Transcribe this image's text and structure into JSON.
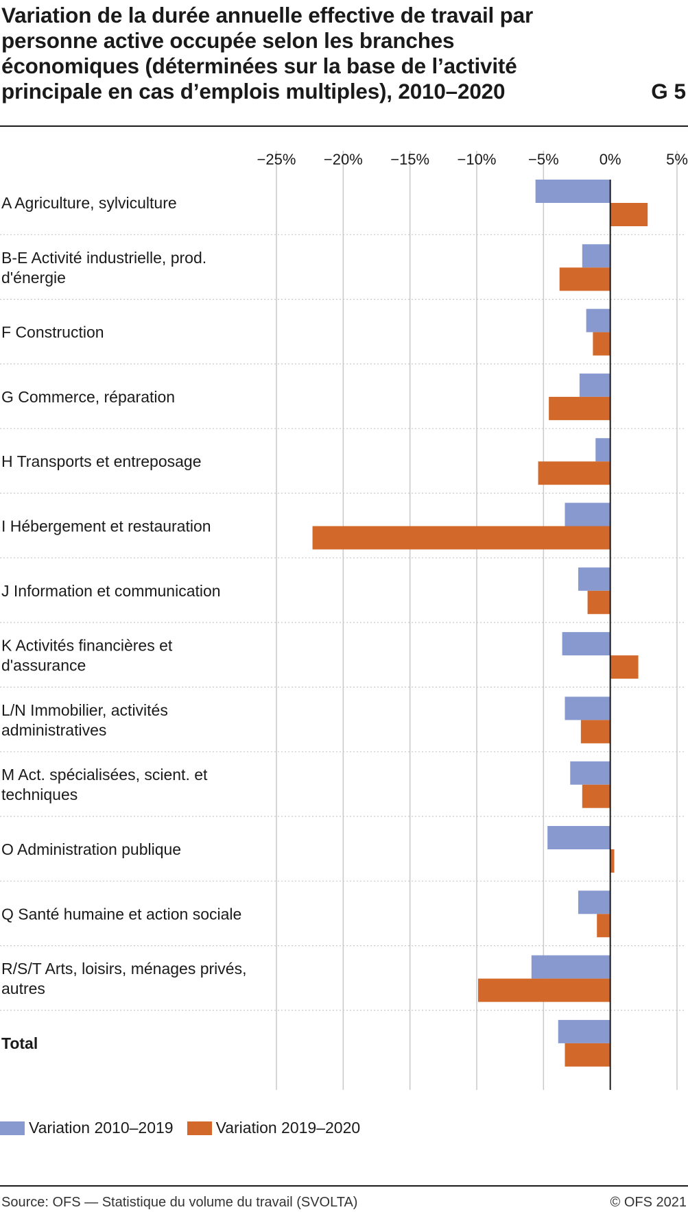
{
  "header": {
    "title": "Variation de la durée annuelle effective de travail par personne active occupée selon les branches économiques (déterminées sur la base de l’activité principale en cas d’emplois multiples), 2010–2020",
    "figure_id": "G 5"
  },
  "footer": {
    "source": "Source: OFS — Statistique du volume du travail (SVOLTA)",
    "copyright": "© OFS 2021"
  },
  "colors": {
    "series_1": "#8799cf",
    "series_2": "#d2692a",
    "grid": "#c9c9c9",
    "axis": "#1a1a1a"
  },
  "chart_data": {
    "type": "bar",
    "orientation": "horizontal",
    "title": "Variation de la durée annuelle effective de travail par personne active occupée selon les branches économiques (déterminées sur la base de l’activité principale en cas d’emplois multiples), 2010–2020",
    "xlabel": "",
    "ylabel": "",
    "xlim": [
      -25,
      5
    ],
    "ticks": [
      {
        "value": -25,
        "label": "−25%"
      },
      {
        "value": -20,
        "label": "−20%"
      },
      {
        "value": -15,
        "label": "−15%"
      },
      {
        "value": -10,
        "label": "−10%"
      },
      {
        "value": -5,
        "label": "−5%"
      },
      {
        "value": 0,
        "label": "0%"
      },
      {
        "value": 5,
        "label": "5%"
      }
    ],
    "grid": true,
    "legend_position": "bottom-left",
    "categories": [
      "A Agriculture, sylviculture",
      "B-E Activité industrielle, prod. d'énergie",
      "F Construction",
      "G Commerce, réparation",
      "H Transports et entreposage",
      "I Hébergement et restauration",
      "J Information et communication",
      "K Activités financières et d'assurance",
      "L/N Immobilier, activités administratives",
      "M Act. spécialisées, scient. et techniques",
      "O Administration publique",
      "Q Santé humaine et action sociale",
      "R/S/T Arts, loisirs, ménages privés, autres",
      "Total"
    ],
    "category_lines": [
      [
        "A Agriculture, sylviculture"
      ],
      [
        "B-E Activité industrielle, prod.",
        "d'énergie"
      ],
      [
        "F Construction"
      ],
      [
        "G Commerce, réparation"
      ],
      [
        "H Transports et entreposage"
      ],
      [
        "I Hébergement et restauration"
      ],
      [
        "J Information et communication"
      ],
      [
        "K Activités financières et",
        "d'assurance"
      ],
      [
        "L/N Immobilier, activités",
        "administratives"
      ],
      [
        "M Act. spécialisées, scient. et",
        "techniques"
      ],
      [
        "O Administration publique"
      ],
      [
        "Q Santé humaine et action sociale"
      ],
      [
        "R/S/T Arts, loisirs, ménages privés,",
        "autres"
      ],
      [
        "Total"
      ]
    ],
    "bold_categories": [
      "Total"
    ],
    "series": [
      {
        "name": "Variation 2010–2019",
        "color": "#8799cf",
        "values": [
          -5.6,
          -2.1,
          -1.8,
          -2.3,
          -1.1,
          -3.4,
          -2.4,
          -3.6,
          -3.4,
          -3.0,
          -4.7,
          -2.4,
          -5.9,
          -3.9
        ]
      },
      {
        "name": "Variation 2019–2020",
        "color": "#d2692a",
        "values": [
          2.8,
          -3.8,
          -1.3,
          -4.6,
          -5.4,
          -22.3,
          -1.7,
          2.1,
          -2.2,
          -2.1,
          0.3,
          -1.0,
          -9.9,
          -3.4
        ]
      }
    ]
  }
}
